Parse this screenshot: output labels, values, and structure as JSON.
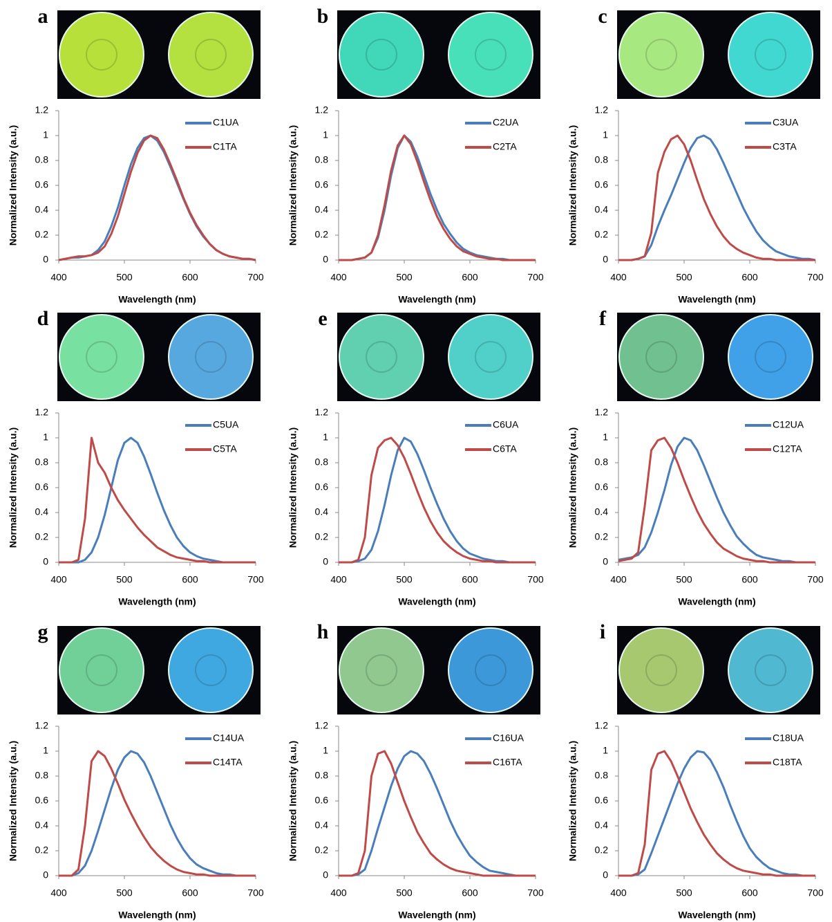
{
  "chart_data": [
    {
      "type": "line",
      "label": "a",
      "xlabel": "Wavelength (nm)",
      "ylabel": "Normalized Intensity (a.u.)",
      "x": [
        400,
        410,
        420,
        430,
        440,
        450,
        460,
        470,
        480,
        490,
        500,
        510,
        520,
        530,
        540,
        550,
        560,
        570,
        580,
        590,
        600,
        610,
        620,
        630,
        640,
        650,
        660,
        670,
        680,
        690,
        700
      ],
      "series": [
        {
          "name": "C1UA",
          "color": "#4a7ebb",
          "values": [
            0,
            0.01,
            0.02,
            0.02,
            0.03,
            0.04,
            0.08,
            0.15,
            0.27,
            0.42,
            0.6,
            0.77,
            0.9,
            0.98,
            1,
            0.96,
            0.87,
            0.75,
            0.62,
            0.49,
            0.37,
            0.27,
            0.19,
            0.13,
            0.08,
            0.05,
            0.03,
            0.02,
            0.01,
            0.01,
            0
          ]
        },
        {
          "name": "C1TA",
          "color": "#be4b48",
          "values": [
            0,
            0.01,
            0.02,
            0.03,
            0.03,
            0.04,
            0.06,
            0.11,
            0.21,
            0.35,
            0.53,
            0.71,
            0.86,
            0.96,
            1,
            0.98,
            0.89,
            0.77,
            0.64,
            0.5,
            0.38,
            0.28,
            0.2,
            0.13,
            0.08,
            0.05,
            0.03,
            0.02,
            0.01,
            0.01,
            0
          ]
        }
      ],
      "xlim": [
        400,
        700
      ],
      "ylim": [
        0,
        1.2
      ],
      "xticks": [
        400,
        500,
        600,
        700
      ],
      "yticks": [
        0,
        0.2,
        0.4,
        0.6,
        0.8,
        1,
        1.2
      ]
    },
    {
      "type": "line",
      "label": "b",
      "xlabel": "Wavelength (nm)",
      "ylabel": "Normalized Intensity (a.u.)",
      "x": [
        400,
        410,
        420,
        430,
        440,
        450,
        460,
        470,
        480,
        490,
        500,
        510,
        520,
        530,
        540,
        550,
        560,
        570,
        580,
        590,
        600,
        610,
        620,
        630,
        640,
        650,
        660,
        670,
        680,
        690,
        700
      ],
      "series": [
        {
          "name": "C2UA",
          "color": "#4a7ebb",
          "values": [
            0,
            0,
            0,
            0.01,
            0.02,
            0.06,
            0.18,
            0.4,
            0.68,
            0.9,
            1,
            0.95,
            0.83,
            0.68,
            0.53,
            0.4,
            0.29,
            0.21,
            0.14,
            0.09,
            0.06,
            0.04,
            0.03,
            0.02,
            0.01,
            0.01,
            0,
            0,
            0,
            0,
            0
          ]
        },
        {
          "name": "C2TA",
          "color": "#be4b48",
          "values": [
            0,
            0,
            0,
            0.01,
            0.02,
            0.06,
            0.2,
            0.44,
            0.72,
            0.92,
            1,
            0.93,
            0.79,
            0.63,
            0.48,
            0.35,
            0.25,
            0.17,
            0.11,
            0.07,
            0.05,
            0.03,
            0.02,
            0.01,
            0.01,
            0,
            0,
            0,
            0,
            0,
            0
          ]
        }
      ],
      "xlim": [
        400,
        700
      ],
      "ylim": [
        0,
        1.2
      ],
      "xticks": [
        400,
        500,
        600,
        700
      ],
      "yticks": [
        0,
        0.2,
        0.4,
        0.6,
        0.8,
        1,
        1.2
      ]
    },
    {
      "type": "line",
      "label": "c",
      "xlabel": "Wavelength (nm)",
      "ylabel": "Normalized Intensity (a.u.)",
      "x": [
        400,
        410,
        420,
        430,
        440,
        450,
        460,
        470,
        480,
        490,
        500,
        510,
        520,
        530,
        540,
        550,
        560,
        570,
        580,
        590,
        600,
        610,
        620,
        630,
        640,
        650,
        660,
        670,
        680,
        690,
        700
      ],
      "series": [
        {
          "name": "C3UA",
          "color": "#4a7ebb",
          "values": [
            0,
            0,
            0,
            0.01,
            0.03,
            0.12,
            0.27,
            0.4,
            0.52,
            0.65,
            0.78,
            0.9,
            0.98,
            1,
            0.97,
            0.89,
            0.78,
            0.66,
            0.54,
            0.42,
            0.32,
            0.23,
            0.16,
            0.11,
            0.07,
            0.05,
            0.03,
            0.02,
            0.01,
            0.01,
            0
          ]
        },
        {
          "name": "C3TA",
          "color": "#be4b48",
          "values": [
            0,
            0,
            0,
            0.01,
            0.03,
            0.22,
            0.7,
            0.87,
            0.97,
            1,
            0.93,
            0.8,
            0.64,
            0.49,
            0.37,
            0.27,
            0.19,
            0.13,
            0.09,
            0.06,
            0.04,
            0.02,
            0.01,
            0.01,
            0,
            0,
            0,
            0,
            0,
            0,
            0
          ]
        }
      ],
      "xlim": [
        400,
        700
      ],
      "ylim": [
        0,
        1.2
      ],
      "xticks": [
        400,
        500,
        600,
        700
      ],
      "yticks": [
        0,
        0.2,
        0.4,
        0.6,
        0.8,
        1,
        1.2
      ]
    },
    {
      "type": "line",
      "label": "d",
      "xlabel": "Wavelength (nm)",
      "ylabel": "Normalized Intensity (a.u.)",
      "x": [
        400,
        410,
        420,
        430,
        440,
        450,
        460,
        470,
        480,
        490,
        500,
        510,
        520,
        530,
        540,
        550,
        560,
        570,
        580,
        590,
        600,
        610,
        620,
        630,
        640,
        650,
        660,
        670,
        680,
        690,
        700
      ],
      "series": [
        {
          "name": "C5UA",
          "color": "#4a7ebb",
          "values": [
            0,
            0,
            0,
            0,
            0.02,
            0.08,
            0.2,
            0.38,
            0.6,
            0.82,
            0.96,
            1,
            0.96,
            0.85,
            0.71,
            0.56,
            0.42,
            0.3,
            0.2,
            0.13,
            0.08,
            0.05,
            0.03,
            0.02,
            0.01,
            0,
            0,
            0,
            0,
            0,
            0
          ]
        },
        {
          "name": "C5TA",
          "color": "#be4b48",
          "values": [
            0,
            0,
            0,
            0.02,
            0.35,
            1,
            0.8,
            0.72,
            0.6,
            0.5,
            0.42,
            0.35,
            0.28,
            0.22,
            0.17,
            0.12,
            0.09,
            0.06,
            0.04,
            0.03,
            0.02,
            0.01,
            0.01,
            0,
            0,
            0,
            0,
            0,
            0,
            0,
            0
          ]
        }
      ],
      "xlim": [
        400,
        700
      ],
      "ylim": [
        0,
        1.2
      ],
      "xticks": [
        400,
        500,
        600,
        700
      ],
      "yticks": [
        0,
        0.2,
        0.4,
        0.6,
        0.8,
        1,
        1.2
      ]
    },
    {
      "type": "line",
      "label": "e",
      "xlabel": "Wavelength (nm)",
      "ylabel": "Normalized Intensity (a.u.)",
      "x": [
        400,
        410,
        420,
        430,
        440,
        450,
        460,
        470,
        480,
        490,
        500,
        510,
        520,
        530,
        540,
        550,
        560,
        570,
        580,
        590,
        600,
        610,
        620,
        630,
        640,
        650,
        660,
        670,
        680,
        690,
        700
      ],
      "series": [
        {
          "name": "C6UA",
          "color": "#4a7ebb",
          "values": [
            0,
            0,
            0,
            0.01,
            0.03,
            0.1,
            0.25,
            0.46,
            0.7,
            0.9,
            1,
            0.97,
            0.87,
            0.74,
            0.6,
            0.47,
            0.35,
            0.25,
            0.17,
            0.11,
            0.07,
            0.05,
            0.03,
            0.02,
            0.01,
            0.01,
            0,
            0,
            0,
            0,
            0
          ]
        },
        {
          "name": "C6TA",
          "color": "#be4b48",
          "values": [
            0,
            0,
            0,
            0.02,
            0.2,
            0.7,
            0.92,
            0.98,
            1,
            0.94,
            0.84,
            0.71,
            0.57,
            0.44,
            0.33,
            0.24,
            0.17,
            0.12,
            0.08,
            0.05,
            0.03,
            0.02,
            0.01,
            0.01,
            0,
            0,
            0,
            0,
            0,
            0,
            0
          ]
        }
      ],
      "xlim": [
        400,
        700
      ],
      "ylim": [
        0,
        1.2
      ],
      "xticks": [
        400,
        500,
        600,
        700
      ],
      "yticks": [
        0,
        0.2,
        0.4,
        0.6,
        0.8,
        1,
        1.2
      ]
    },
    {
      "type": "line",
      "label": "f",
      "xlabel": "Wavelength (nm)",
      "ylabel": "Normalized Intensity (a.u.)",
      "x": [
        400,
        410,
        420,
        430,
        440,
        450,
        460,
        470,
        480,
        490,
        500,
        510,
        520,
        530,
        540,
        550,
        560,
        570,
        580,
        590,
        600,
        610,
        620,
        630,
        640,
        650,
        660,
        670,
        680,
        690,
        700
      ],
      "series": [
        {
          "name": "C12UA",
          "color": "#4a7ebb",
          "values": [
            0.02,
            0.03,
            0.04,
            0.06,
            0.12,
            0.24,
            0.4,
            0.58,
            0.78,
            0.93,
            1,
            0.98,
            0.9,
            0.78,
            0.65,
            0.52,
            0.4,
            0.3,
            0.21,
            0.15,
            0.1,
            0.06,
            0.04,
            0.03,
            0.02,
            0.01,
            0.01,
            0,
            0,
            0,
            0
          ]
        },
        {
          "name": "C12TA",
          "color": "#be4b48",
          "values": [
            0.01,
            0.02,
            0.03,
            0.08,
            0.45,
            0.9,
            0.98,
            1,
            0.92,
            0.8,
            0.66,
            0.53,
            0.41,
            0.31,
            0.23,
            0.16,
            0.11,
            0.08,
            0.05,
            0.03,
            0.02,
            0.01,
            0.01,
            0,
            0,
            0,
            0,
            0,
            0,
            0,
            0
          ]
        }
      ],
      "xlim": [
        400,
        700
      ],
      "ylim": [
        0,
        1.2
      ],
      "xticks": [
        400,
        500,
        600,
        700
      ],
      "yticks": [
        0,
        0.2,
        0.4,
        0.6,
        0.8,
        1,
        1.2
      ]
    },
    {
      "type": "line",
      "label": "g",
      "xlabel": "Wavelength (nm)",
      "ylabel": "Normalized Intensity (a.u.)",
      "x": [
        400,
        410,
        420,
        430,
        440,
        450,
        460,
        470,
        480,
        490,
        500,
        510,
        520,
        530,
        540,
        550,
        560,
        570,
        580,
        590,
        600,
        610,
        620,
        630,
        640,
        650,
        660,
        670,
        680,
        690,
        700
      ],
      "series": [
        {
          "name": "C14UA",
          "color": "#4a7ebb",
          "values": [
            0,
            0,
            0,
            0.02,
            0.08,
            0.2,
            0.36,
            0.53,
            0.7,
            0.85,
            0.95,
            1,
            0.98,
            0.91,
            0.8,
            0.67,
            0.54,
            0.41,
            0.3,
            0.21,
            0.14,
            0.09,
            0.06,
            0.04,
            0.02,
            0.01,
            0.01,
            0,
            0,
            0,
            0
          ]
        },
        {
          "name": "C14TA",
          "color": "#be4b48",
          "values": [
            0,
            0,
            0,
            0.05,
            0.4,
            0.92,
            1,
            0.96,
            0.86,
            0.74,
            0.61,
            0.5,
            0.4,
            0.31,
            0.23,
            0.17,
            0.12,
            0.08,
            0.05,
            0.03,
            0.02,
            0.01,
            0.01,
            0,
            0,
            0,
            0,
            0,
            0,
            0,
            0
          ]
        }
      ],
      "xlim": [
        400,
        700
      ],
      "ylim": [
        0,
        1.2
      ],
      "xticks": [
        400,
        500,
        600,
        700
      ],
      "yticks": [
        0,
        0.2,
        0.4,
        0.6,
        0.8,
        1,
        1.2
      ]
    },
    {
      "type": "line",
      "label": "h",
      "xlabel": "Wavelength (nm)",
      "ylabel": "Normalized Intensity (a.u.)",
      "x": [
        400,
        410,
        420,
        430,
        440,
        450,
        460,
        470,
        480,
        490,
        500,
        510,
        520,
        530,
        540,
        550,
        560,
        570,
        580,
        590,
        600,
        610,
        620,
        630,
        640,
        650,
        660,
        670,
        680,
        690,
        700
      ],
      "series": [
        {
          "name": "C16UA",
          "color": "#4a7ebb",
          "values": [
            0,
            0,
            0,
            0.01,
            0.05,
            0.2,
            0.38,
            0.55,
            0.72,
            0.86,
            0.96,
            1,
            0.98,
            0.92,
            0.82,
            0.7,
            0.57,
            0.44,
            0.33,
            0.24,
            0.16,
            0.11,
            0.07,
            0.04,
            0.03,
            0.02,
            0.01,
            0,
            0,
            0,
            0
          ]
        },
        {
          "name": "C16TA",
          "color": "#be4b48",
          "values": [
            0,
            0,
            0,
            0.02,
            0.2,
            0.8,
            0.98,
            1,
            0.9,
            0.75,
            0.6,
            0.47,
            0.35,
            0.26,
            0.18,
            0.13,
            0.09,
            0.06,
            0.04,
            0.03,
            0.02,
            0.01,
            0,
            0,
            0,
            0,
            0,
            0,
            0,
            0,
            0
          ]
        }
      ],
      "xlim": [
        400,
        700
      ],
      "ylim": [
        0,
        1.2
      ],
      "xticks": [
        400,
        500,
        600,
        700
      ],
      "yticks": [
        0,
        0.2,
        0.4,
        0.6,
        0.8,
        1,
        1.2
      ]
    },
    {
      "type": "line",
      "label": "i",
      "xlabel": "Wavelength (nm)",
      "ylabel": "Normalized Intensity (a.u.)",
      "x": [
        400,
        410,
        420,
        430,
        440,
        450,
        460,
        470,
        480,
        490,
        500,
        510,
        520,
        530,
        540,
        550,
        560,
        570,
        580,
        590,
        600,
        610,
        620,
        630,
        640,
        650,
        660,
        670,
        680,
        690,
        700
      ],
      "series": [
        {
          "name": "C18UA",
          "color": "#4a7ebb",
          "values": [
            0,
            0,
            0,
            0.01,
            0.05,
            0.18,
            0.32,
            0.46,
            0.6,
            0.74,
            0.86,
            0.95,
            1,
            0.99,
            0.93,
            0.83,
            0.71,
            0.57,
            0.44,
            0.32,
            0.22,
            0.15,
            0.1,
            0.06,
            0.04,
            0.02,
            0.01,
            0.01,
            0,
            0,
            0
          ]
        },
        {
          "name": "C18TA",
          "color": "#be4b48",
          "values": [
            0,
            0,
            0,
            0.02,
            0.25,
            0.85,
            0.98,
            1,
            0.92,
            0.8,
            0.67,
            0.54,
            0.43,
            0.33,
            0.25,
            0.18,
            0.13,
            0.09,
            0.06,
            0.04,
            0.03,
            0.02,
            0.01,
            0.01,
            0,
            0,
            0,
            0,
            0,
            0,
            0
          ]
        }
      ],
      "xlim": [
        400,
        700
      ],
      "ylim": [
        0,
        1.2
      ],
      "xticks": [
        400,
        500,
        600,
        700
      ],
      "yticks": [
        0,
        0.2,
        0.4,
        0.6,
        0.8,
        1,
        1.2
      ]
    }
  ]
}
